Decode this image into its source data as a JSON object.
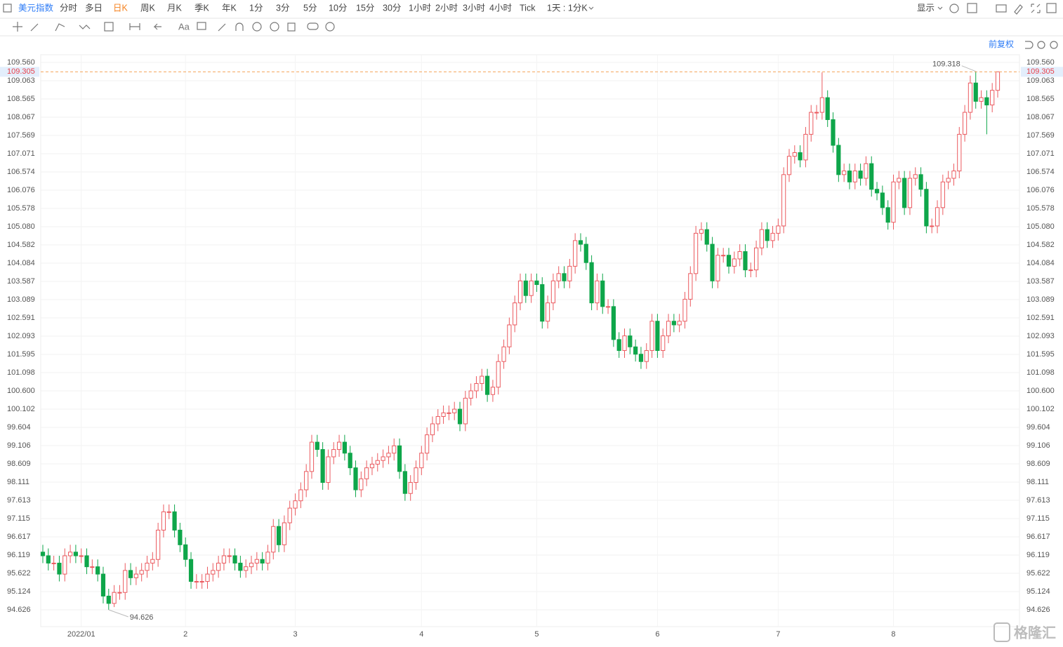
{
  "toolbar": {
    "symbol": "美元指数",
    "periods": [
      "分时",
      "多日",
      "日K",
      "周K",
      "月K",
      "季K",
      "年K",
      "1分",
      "3分",
      "5分",
      "10分",
      "15分",
      "30分",
      "1小时",
      "2小时",
      "3小时",
      "4小时",
      "Tick"
    ],
    "active_period": 2,
    "period_setting": "1天 : 1分K",
    "display": "显示"
  },
  "adjust": "前复权",
  "watermark": "格隆汇",
  "chart_data": {
    "type": "candlestick",
    "up_color": "#eb5a5f",
    "down_color": "#0ea64a",
    "price_line_color": "#f5a45a",
    "price_label_color": "#e8404a",
    "grid": true,
    "ylim": [
      94.166,
      109.771
    ],
    "yticks": [
      {
        "value": 109.56,
        "label": "109.560"
      },
      109.063,
      108.565,
      108.067,
      107.569,
      107.071,
      106.574,
      106.076,
      105.578,
      {
        "value": 105.08,
        "label": "105.080"
      },
      104.582,
      104.084,
      103.587,
      103.089,
      102.591,
      102.093,
      101.595,
      101.098,
      {
        "value": 100.6,
        "label": "100.600"
      },
      100.102,
      99.604,
      99.106,
      98.609,
      98.111,
      97.613,
      97.115,
      96.617,
      96.119,
      95.622,
      95.124,
      94.626
    ],
    "xticks": [
      {
        "value": 7,
        "label": "2022/01"
      },
      {
        "value": 26,
        "label": "2"
      },
      {
        "value": 46,
        "label": "3"
      },
      {
        "value": 69,
        "label": "4"
      },
      {
        "value": 90,
        "label": "5"
      },
      {
        "value": 112,
        "label": "6"
      },
      {
        "value": 134,
        "label": "7"
      },
      {
        "value": 155,
        "label": "8"
      }
    ],
    "open": [
      96.2,
      96.1,
      95.9,
      95.9,
      95.6,
      96.1,
      96.2,
      96.1,
      96.1,
      95.8,
      95.8,
      95.6,
      95.0,
      94.8,
      95.1,
      95.1,
      95.7,
      95.5,
      95.6,
      95.7,
      95.9,
      96.0,
      96.8,
      97.3,
      97.3,
      96.8,
      96.4,
      96.0,
      95.4,
      95.4,
      95.4,
      95.6,
      95.7,
      95.9,
      96.1,
      96.1,
      95.9,
      95.7,
      95.8,
      95.9,
      96.0,
      95.9,
      96.2,
      96.9,
      96.4,
      97.0,
      97.4,
      97.6,
      97.9,
      98.4,
      99.2,
      99.0,
      98.1,
      98.8,
      99.0,
      99.2,
      98.9,
      98.5,
      97.9,
      98.2,
      98.5,
      98.6,
      98.7,
      98.8,
      98.9,
      99.1,
      98.4,
      97.8,
      98.1,
      98.5,
      98.9,
      99.4,
      99.7,
      99.9,
      100.0,
      100.0,
      100.1,
      99.7,
      100.4,
      100.6,
      100.8,
      101.0,
      100.5,
      100.7,
      101.4,
      101.8,
      102.4,
      103.0,
      103.6,
      103.2,
      103.6,
      103.5,
      102.5,
      103.0,
      103.6,
      103.8,
      103.6,
      104.0,
      104.7,
      104.6,
      104.1,
      103.0,
      103.6,
      102.9,
      102.9,
      102.0,
      101.7,
      102.1,
      101.8,
      101.6,
      101.4,
      101.7,
      102.5,
      101.7,
      102.1,
      102.5,
      102.4,
      102.5,
      103.1,
      103.8,
      104.9,
      105.0,
      104.6,
      103.6,
      104.3,
      104.3,
      104.0,
      104.2,
      104.4,
      103.9,
      103.9,
      104.5,
      105.0,
      104.7,
      104.9,
      105.1,
      106.5,
      107.0,
      107.1,
      106.9,
      107.6,
      108.2,
      108.2,
      108.6,
      108.0,
      107.3,
      106.5,
      106.6,
      106.3,
      106.6,
      106.4,
      106.8,
      106.1,
      106.0,
      105.6,
      105.2,
      106.3,
      106.4,
      105.6,
      106.4,
      106.5,
      106.1,
      105.1,
      105.1,
      105.6,
      106.3,
      106.4,
      106.6,
      107.6,
      108.2,
      109.0,
      108.5,
      108.6,
      108.4,
      108.8
    ],
    "high": [
      96.4,
      96.3,
      96.1,
      96.1,
      96.3,
      96.4,
      96.4,
      96.3,
      96.3,
      96.0,
      96.0,
      95.8,
      95.2,
      95.3,
      95.3,
      95.9,
      95.9,
      95.8,
      95.9,
      96.1,
      96.2,
      97.0,
      97.5,
      97.5,
      97.5,
      97.0,
      96.6,
      96.2,
      95.6,
      95.6,
      95.8,
      95.9,
      96.1,
      96.3,
      96.3,
      96.3,
      96.1,
      96.0,
      96.1,
      96.2,
      96.2,
      96.4,
      97.1,
      97.1,
      97.2,
      97.6,
      97.8,
      98.1,
      98.6,
      99.4,
      99.4,
      99.2,
      99.0,
      99.2,
      99.4,
      99.4,
      99.1,
      98.7,
      98.4,
      98.7,
      98.8,
      98.9,
      99.0,
      99.1,
      99.3,
      99.3,
      98.6,
      98.3,
      98.7,
      99.1,
      99.6,
      99.9,
      100.1,
      100.2,
      100.2,
      100.3,
      100.3,
      100.6,
      100.8,
      101.0,
      101.2,
      101.2,
      100.9,
      101.6,
      102.0,
      102.6,
      103.2,
      103.8,
      103.8,
      103.8,
      103.8,
      103.7,
      103.2,
      103.8,
      104.0,
      104.0,
      104.2,
      104.9,
      104.9,
      104.8,
      104.3,
      103.8,
      103.8,
      103.1,
      103.1,
      102.2,
      102.3,
      102.3,
      102.0,
      101.8,
      101.9,
      102.7,
      102.7,
      102.3,
      102.7,
      102.7,
      102.7,
      103.3,
      104.0,
      105.1,
      105.2,
      105.2,
      104.8,
      104.5,
      104.5,
      104.5,
      104.4,
      104.6,
      104.6,
      104.1,
      104.7,
      105.2,
      105.2,
      105.1,
      105.3,
      106.7,
      107.2,
      107.3,
      107.3,
      107.8,
      108.4,
      108.4,
      109.29,
      108.8,
      108.2,
      107.5,
      106.8,
      106.8,
      106.8,
      106.8,
      107.0,
      107.0,
      106.3,
      106.2,
      105.8,
      106.5,
      106.6,
      106.6,
      106.6,
      106.7,
      106.7,
      106.3,
      105.3,
      105.8,
      106.5,
      106.6,
      106.8,
      107.8,
      108.4,
      109.2,
      109.318,
      108.8,
      108.8,
      109.0,
      109.305
    ],
    "low": [
      95.9,
      95.7,
      95.7,
      95.4,
      95.4,
      95.9,
      95.9,
      95.9,
      95.6,
      95.6,
      95.4,
      94.8,
      94.626,
      94.7,
      94.9,
      94.9,
      95.3,
      95.3,
      95.4,
      95.5,
      95.7,
      95.8,
      96.6,
      97.1,
      96.6,
      96.2,
      95.8,
      95.2,
      95.2,
      95.2,
      95.2,
      95.4,
      95.5,
      95.7,
      95.9,
      95.7,
      95.5,
      95.5,
      95.6,
      95.7,
      95.7,
      95.7,
      96.0,
      96.2,
      96.2,
      96.8,
      97.2,
      97.4,
      97.7,
      98.2,
      98.8,
      97.9,
      97.9,
      98.6,
      98.8,
      98.7,
      98.3,
      97.7,
      97.7,
      98.0,
      98.3,
      98.4,
      98.5,
      98.6,
      98.7,
      98.2,
      97.6,
      97.6,
      97.9,
      98.3,
      98.7,
      99.2,
      99.5,
      99.7,
      99.8,
      99.8,
      99.5,
      99.5,
      100.2,
      100.4,
      100.6,
      100.3,
      100.3,
      100.5,
      101.2,
      101.6,
      102.2,
      102.8,
      103.0,
      103.0,
      103.3,
      102.3,
      102.3,
      102.8,
      103.4,
      103.4,
      103.4,
      103.8,
      104.4,
      103.9,
      102.8,
      102.8,
      102.7,
      102.7,
      101.8,
      101.5,
      101.5,
      101.6,
      101.4,
      101.2,
      101.2,
      101.5,
      101.5,
      101.5,
      101.9,
      102.2,
      102.2,
      102.3,
      102.9,
      103.6,
      104.7,
      104.4,
      103.4,
      103.4,
      104.1,
      103.8,
      103.8,
      104.0,
      103.7,
      103.7,
      103.7,
      104.3,
      104.5,
      104.5,
      104.7,
      104.9,
      106.3,
      106.8,
      106.7,
      106.7,
      107.4,
      108.0,
      108.0,
      107.8,
      107.1,
      106.3,
      106.3,
      106.1,
      106.1,
      106.2,
      106.2,
      105.9,
      105.8,
      105.4,
      105.0,
      105.0,
      106.1,
      105.4,
      105.4,
      106.2,
      105.9,
      104.9,
      104.9,
      104.9,
      105.4,
      106.1,
      106.2,
      106.4,
      107.4,
      108.0,
      108.3,
      108.3,
      107.6,
      108.2,
      108.6
    ],
    "close": [
      96.1,
      95.9,
      95.9,
      95.6,
      96.1,
      96.2,
      96.1,
      96.1,
      95.8,
      95.8,
      95.6,
      95.0,
      94.8,
      95.1,
      95.1,
      95.7,
      95.5,
      95.6,
      95.7,
      95.9,
      96.0,
      96.8,
      97.3,
      97.3,
      96.8,
      96.4,
      96.0,
      95.4,
      95.4,
      95.4,
      95.6,
      95.7,
      95.9,
      96.1,
      96.1,
      95.9,
      95.7,
      95.8,
      95.9,
      96.0,
      95.9,
      96.2,
      96.9,
      96.4,
      97.0,
      97.4,
      97.6,
      97.9,
      98.4,
      99.2,
      99.0,
      98.1,
      98.8,
      99.0,
      99.2,
      98.9,
      98.5,
      97.9,
      98.2,
      98.5,
      98.6,
      98.7,
      98.8,
      98.9,
      99.1,
      98.4,
      97.8,
      98.1,
      98.5,
      98.9,
      99.4,
      99.7,
      99.9,
      100.0,
      100.0,
      100.1,
      99.7,
      100.4,
      100.6,
      100.8,
      101.0,
      100.5,
      100.7,
      101.4,
      101.8,
      102.4,
      103.0,
      103.6,
      103.2,
      103.6,
      103.5,
      102.5,
      103.0,
      103.6,
      103.8,
      103.6,
      104.0,
      104.7,
      104.6,
      104.1,
      103.0,
      103.6,
      102.9,
      102.9,
      102.0,
      101.7,
      102.1,
      101.8,
      101.6,
      101.4,
      101.7,
      102.5,
      101.7,
      102.1,
      102.5,
      102.4,
      102.5,
      103.1,
      103.8,
      104.9,
      105.0,
      104.6,
      103.6,
      104.3,
      104.3,
      104.0,
      104.2,
      104.4,
      103.9,
      103.9,
      104.5,
      105.0,
      104.7,
      104.9,
      105.1,
      106.5,
      107.0,
      107.1,
      106.9,
      107.6,
      108.2,
      108.2,
      108.6,
      108.0,
      107.3,
      106.5,
      106.6,
      106.3,
      106.6,
      106.4,
      106.8,
      106.1,
      106.0,
      105.6,
      105.2,
      106.3,
      106.4,
      105.6,
      106.4,
      106.5,
      106.1,
      105.1,
      105.1,
      105.6,
      106.3,
      106.4,
      106.6,
      107.6,
      108.2,
      109.0,
      108.5,
      108.6,
      108.4,
      108.8,
      109.305
    ]
  }
}
